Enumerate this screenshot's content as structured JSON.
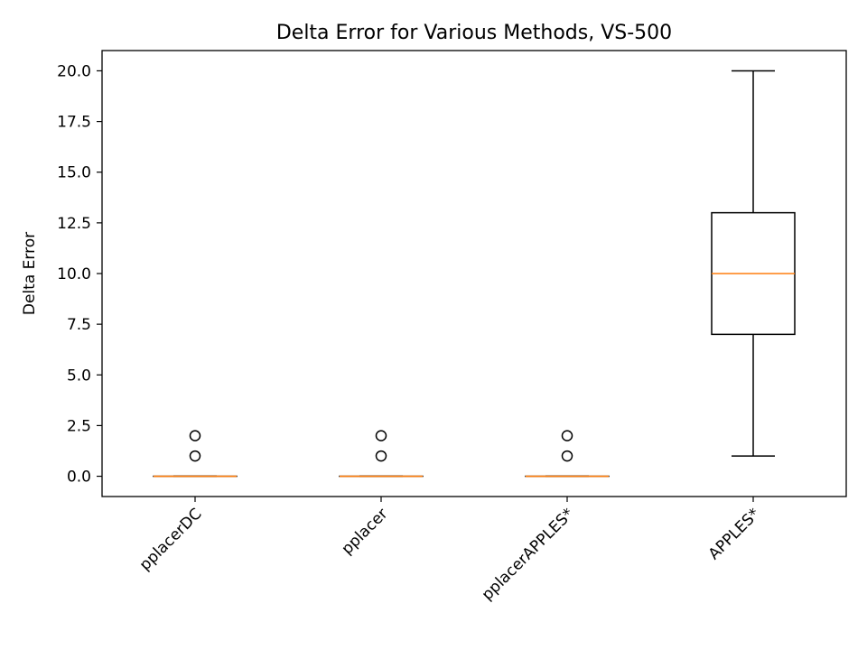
{
  "chart_data": {
    "type": "box",
    "title": "Delta Error for Various Methods, VS-500",
    "xlabel": "",
    "ylabel": "Delta Error",
    "ylim": [
      -1.0,
      21.0
    ],
    "yticks": [
      "0.0",
      "2.5",
      "5.0",
      "7.5",
      "10.0",
      "12.5",
      "15.0",
      "17.5",
      "20.0"
    ],
    "grid": false,
    "colors": {
      "box": "#000000",
      "median": "#ff7f0e",
      "background": "#ffffff"
    },
    "categories": [
      "pplacerDC",
      "pplacer",
      "pplacerAPPLES*",
      "APPLES*"
    ],
    "boxes": [
      {
        "category": "pplacerDC",
        "whisker_low": 0,
        "q1": 0,
        "median": 0,
        "q3": 0,
        "whisker_high": 0,
        "outliers": [
          1,
          2
        ]
      },
      {
        "category": "pplacer",
        "whisker_low": 0,
        "q1": 0,
        "median": 0,
        "q3": 0,
        "whisker_high": 0,
        "outliers": [
          1,
          2
        ]
      },
      {
        "category": "pplacerAPPLES*",
        "whisker_low": 0,
        "q1": 0,
        "median": 0,
        "q3": 0,
        "whisker_high": 0,
        "outliers": [
          1,
          2
        ]
      },
      {
        "category": "APPLES*",
        "whisker_low": 1,
        "q1": 7,
        "median": 10,
        "q3": 13,
        "whisker_high": 20,
        "outliers": []
      }
    ]
  }
}
